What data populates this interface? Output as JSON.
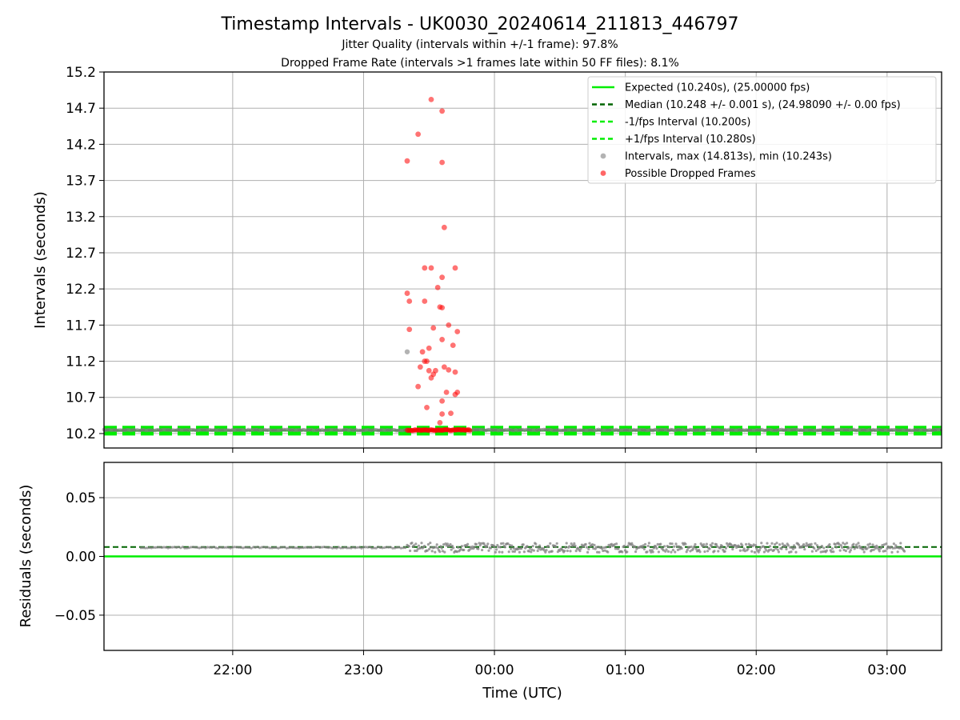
{
  "title": "Timestamp Intervals - UK0030_20240614_211813_446797",
  "subtitle1": "Jitter Quality (intervals within +/-1 frame): 97.8%",
  "subtitle2": "Dropped Frame Rate (intervals >1 frames late within 50 FF files): 8.1%",
  "colors": {
    "expected": "#00ee00",
    "median": "#006400",
    "interval_bounds": "#00ee00",
    "intervals": "#808080",
    "dropped": "#ff0000",
    "grid": "#b0b0b0"
  },
  "chart_data": [
    {
      "type": "scatter",
      "ylabel": "Intervals (seconds)",
      "xlim": [
        "21:01",
        "03:25"
      ],
      "ylim": [
        10.0,
        15.2
      ],
      "yticks": [
        "10.2",
        "10.7",
        "11.2",
        "11.7",
        "12.2",
        "12.7",
        "13.2",
        "13.7",
        "14.2",
        "14.7",
        "15.2"
      ],
      "grid": true,
      "legend_position": "top-right",
      "legend": [
        "Expected (10.240s), (25.00000 fps)",
        "Median (10.248 +/- 0.001 s), (24.98090 +/- 0.00 fps)",
        "-1/fps Interval (10.200s)",
        "+1/fps Interval (10.280s)",
        "Intervals, max (14.813s), min (10.243s)",
        "Possible Dropped Frames"
      ],
      "reference_lines": {
        "expected": 10.24,
        "median": 10.248,
        "minus_1_fps": 10.2,
        "plus_1_fps": 10.28
      },
      "series": [
        {
          "name": "Intervals, max (14.813s), min (10.243s)",
          "points": [
            [
              "23:20",
              11.33
            ]
          ],
          "baseline": {
            "start": "21:01",
            "end": "03:25",
            "value": 10.248
          }
        },
        {
          "name": "Possible Dropped Frames",
          "baseline": {
            "start": "23:20",
            "end": "23:49",
            "value": 10.248
          },
          "points": [
            [
              "23:31",
              14.82
            ],
            [
              "23:36",
              14.66
            ],
            [
              "23:25",
              14.34
            ],
            [
              "23:20",
              13.97
            ],
            [
              "23:36",
              13.95
            ],
            [
              "23:37",
              13.05
            ],
            [
              "23:28",
              12.49
            ],
            [
              "23:31",
              12.49
            ],
            [
              "23:42",
              12.49
            ],
            [
              "23:36",
              12.36
            ],
            [
              "23:34",
              12.22
            ],
            [
              "23:20",
              12.14
            ],
            [
              "23:21",
              12.03
            ],
            [
              "23:28",
              12.03
            ],
            [
              "23:35",
              11.95
            ],
            [
              "23:36",
              11.94
            ],
            [
              "23:39",
              11.7
            ],
            [
              "23:21",
              11.64
            ],
            [
              "23:32",
              11.66
            ],
            [
              "23:43",
              11.61
            ],
            [
              "23:36",
              11.5
            ],
            [
              "23:41",
              11.42
            ],
            [
              "23:30",
              11.38
            ],
            [
              "23:27",
              11.33
            ],
            [
              "23:28",
              11.2
            ],
            [
              "23:29",
              11.2
            ],
            [
              "23:26",
              11.12
            ],
            [
              "23:37",
              11.12
            ],
            [
              "23:30",
              11.07
            ],
            [
              "23:33",
              11.07
            ],
            [
              "23:39",
              11.08
            ],
            [
              "23:42",
              11.05
            ],
            [
              "23:32",
              11.02
            ],
            [
              "23:31",
              10.97
            ],
            [
              "23:25",
              10.85
            ],
            [
              "23:38",
              10.77
            ],
            [
              "23:43",
              10.77
            ],
            [
              "23:42",
              10.74
            ],
            [
              "23:36",
              10.65
            ],
            [
              "23:29",
              10.56
            ],
            [
              "23:36",
              10.47
            ],
            [
              "23:40",
              10.48
            ],
            [
              "23:35",
              10.35
            ]
          ]
        }
      ]
    },
    {
      "type": "scatter",
      "xlabel": "Time (UTC)",
      "ylabel": "Residuals (seconds)",
      "xlim": [
        "21:01",
        "03:25"
      ],
      "ylim": [
        -0.08,
        0.08
      ],
      "yticks": [
        "−0.05",
        "0.00",
        "0.05"
      ],
      "xticks": [
        "22:00",
        "23:00",
        "00:00",
        "01:00",
        "02:00",
        "03:00"
      ],
      "grid": true,
      "reference_lines": {
        "expected": 0.0,
        "median": 0.008
      },
      "series": [
        {
          "name": "",
          "segments": [
            {
              "start": "21:18",
              "end": "23:20",
              "value": 0.0075,
              "spread": 0.0005
            },
            {
              "start": "23:20",
              "end": "03:08",
              "value": 0.0075,
              "spread": 0.004
            }
          ]
        }
      ]
    }
  ]
}
